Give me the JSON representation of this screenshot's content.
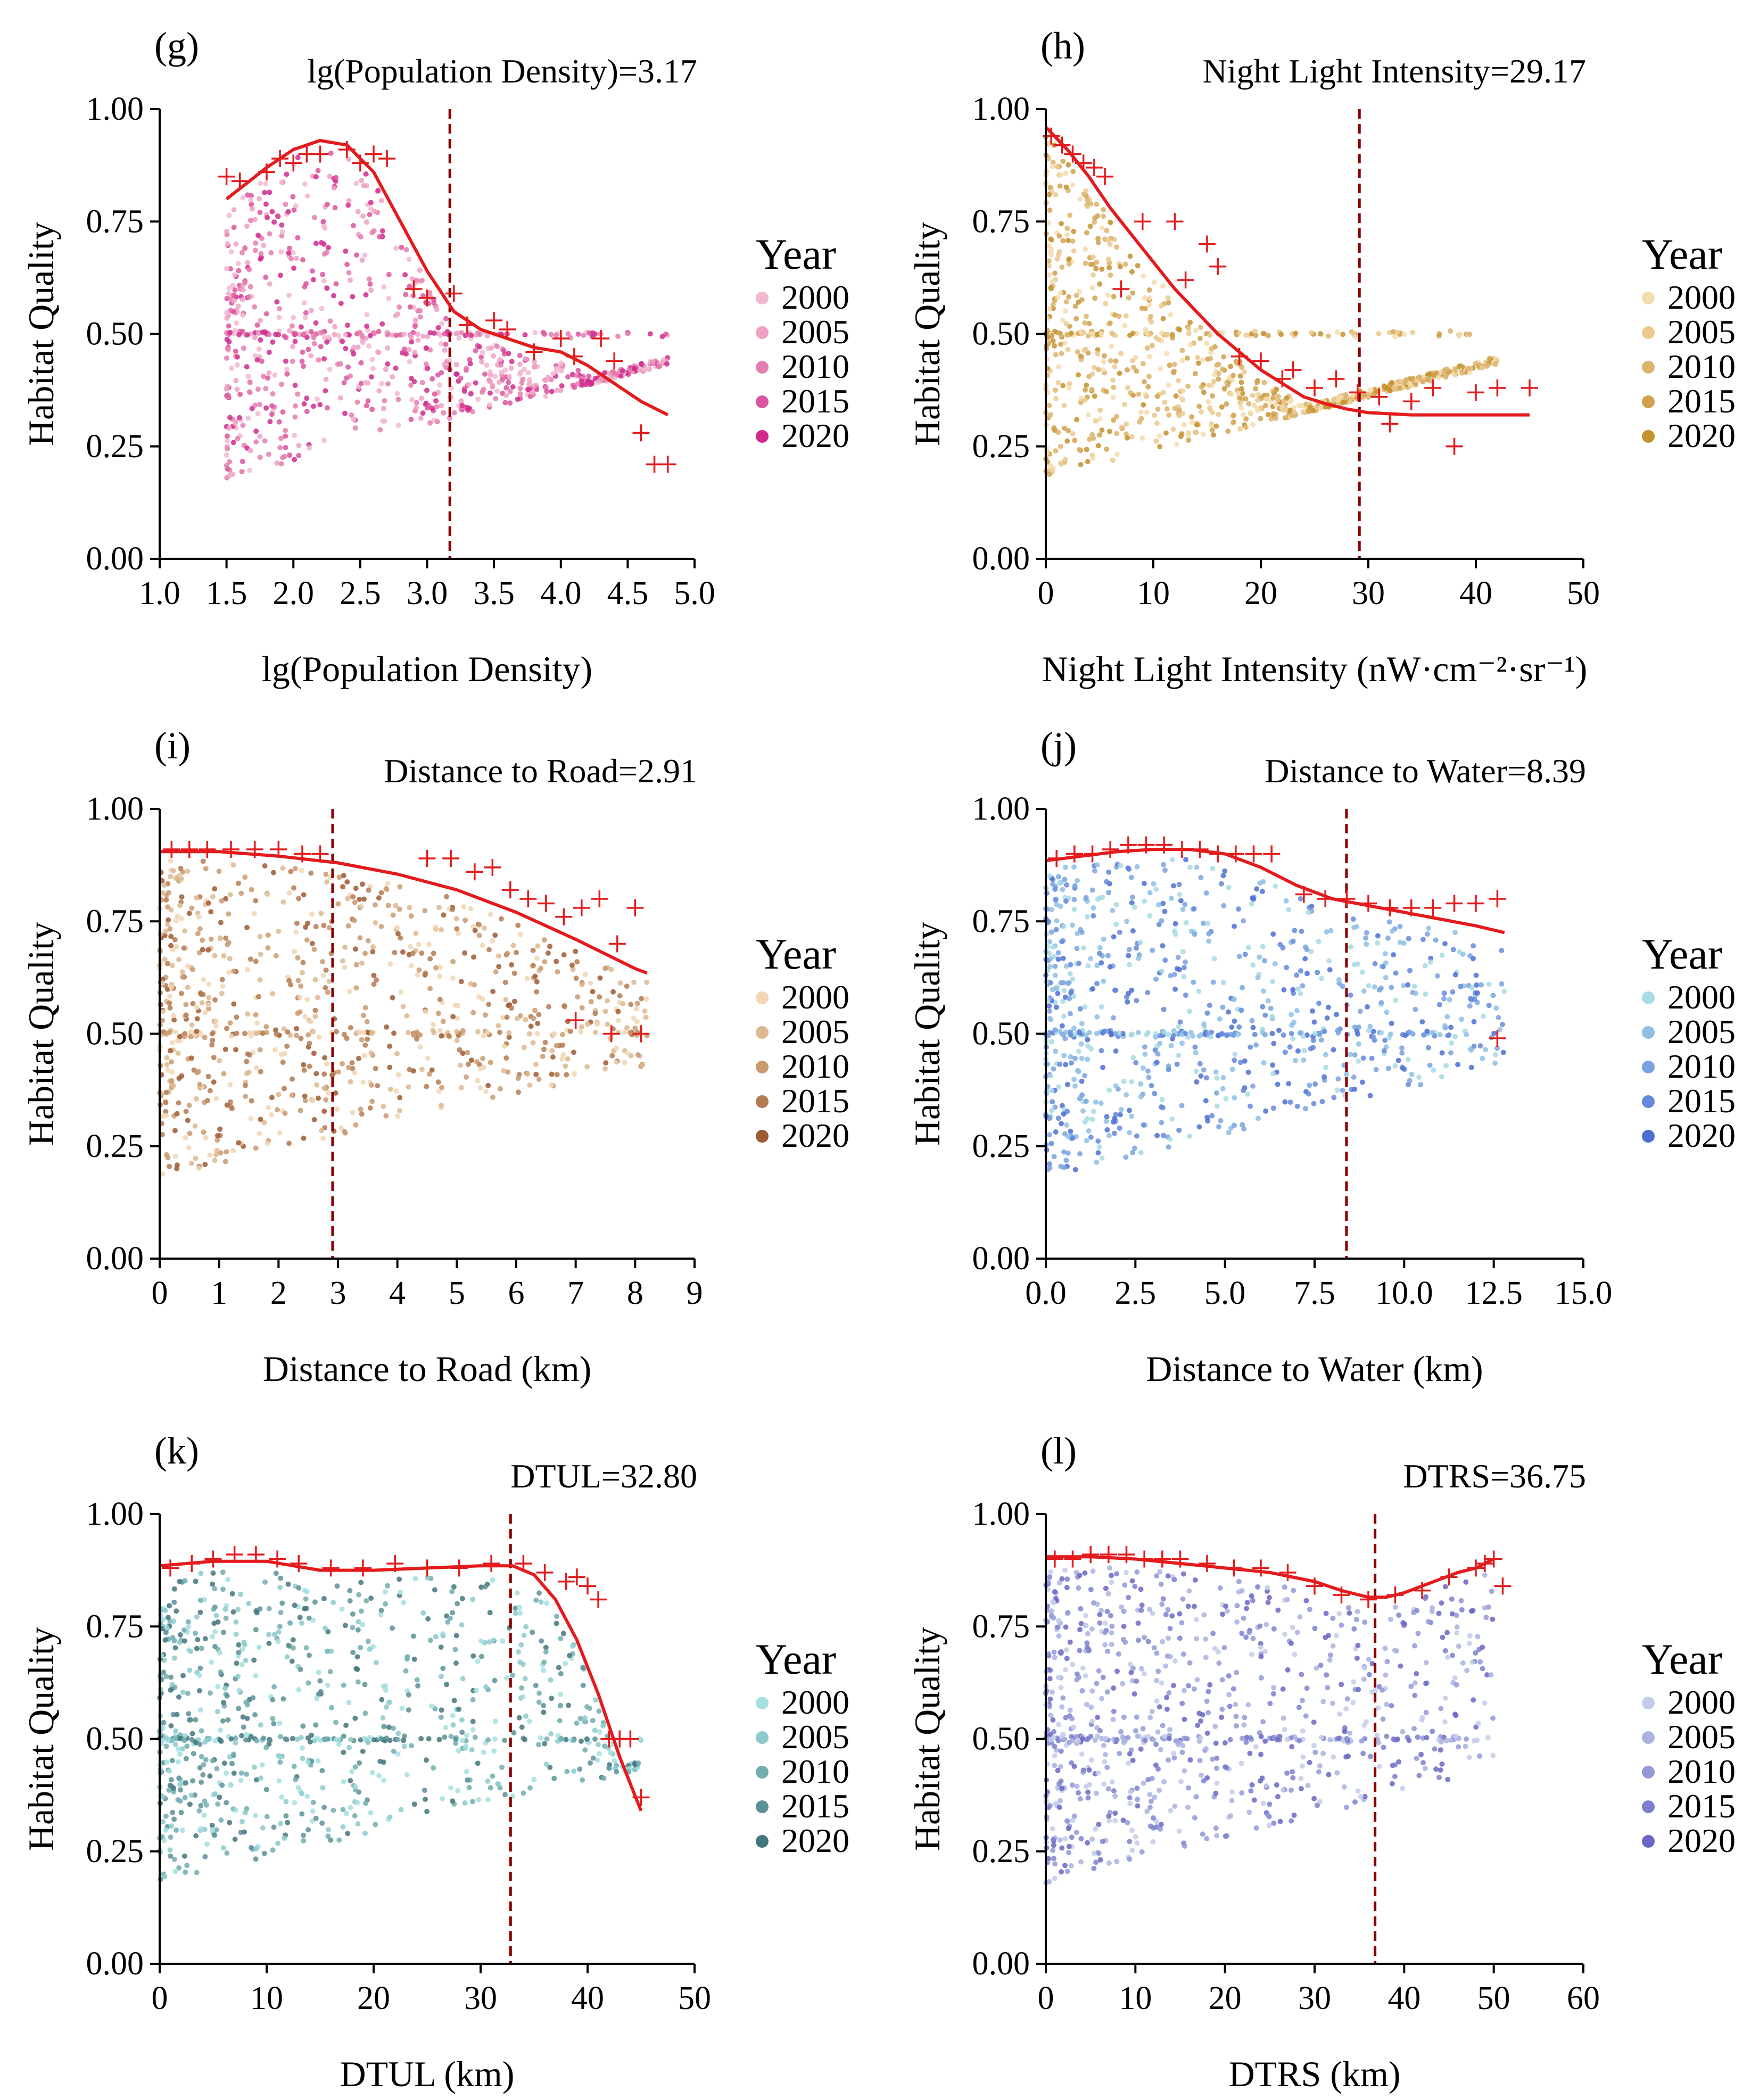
{
  "figure": {
    "axis_color": "#000000",
    "fit_color": "#e41a1c",
    "threshold_color": "#8b0000"
  },
  "chart_data": [
    {
      "type": "scatter",
      "panel_label": "(g)",
      "title": "",
      "threshold_label": "lg(Population Density)=3.17",
      "threshold_value": 3.17,
      "xlabel": "lg(Population Density)",
      "ylabel": "Habitat Quality",
      "xlim": [
        1.0,
        5.0
      ],
      "ylim": [
        0.0,
        1.0
      ],
      "xticks": [
        1.0,
        1.5,
        2.0,
        2.5,
        3.0,
        3.5,
        4.0,
        4.5,
        5.0
      ],
      "xtick_labels": [
        "1.0",
        "1.5",
        "2.0",
        "2.5",
        "3.0",
        "3.5",
        "4.0",
        "4.5",
        "5.0"
      ],
      "yticks": [
        0.0,
        0.25,
        0.5,
        0.75,
        1.0
      ],
      "ytick_labels": [
        "0.00",
        "0.25",
        "0.50",
        "0.75",
        "1.00"
      ],
      "legend_title": "Year",
      "legend_position": "right",
      "years": [
        "2000",
        "2005",
        "2010",
        "2015",
        "2020"
      ],
      "colors": [
        "#f2b8cf",
        "#eda1c3",
        "#e47eb0",
        "#da559e",
        "#cf2c8e"
      ],
      "scatter_x_range": [
        1.5,
        4.8
      ],
      "fit_line": {
        "x": [
          1.5,
          1.8,
          2.0,
          2.2,
          2.4,
          2.6,
          2.8,
          3.0,
          3.2,
          3.4,
          3.6,
          3.8,
          4.0,
          4.2,
          4.4,
          4.6,
          4.8
        ],
        "y": [
          0.8,
          0.87,
          0.91,
          0.93,
          0.92,
          0.86,
          0.75,
          0.64,
          0.55,
          0.51,
          0.49,
          0.47,
          0.46,
          0.43,
          0.39,
          0.35,
          0.32
        ]
      },
      "markers": {
        "x": [
          1.5,
          1.6,
          1.8,
          1.9,
          2.0,
          2.1,
          2.2,
          2.4,
          2.5,
          2.6,
          2.7,
          2.9,
          3.0,
          3.2,
          3.3,
          3.5,
          3.6,
          3.8,
          4.0,
          4.1,
          4.3,
          4.4,
          4.6,
          4.7,
          4.8
        ],
        "y": [
          0.85,
          0.84,
          0.86,
          0.89,
          0.88,
          0.9,
          0.9,
          0.91,
          0.88,
          0.9,
          0.89,
          0.6,
          0.58,
          0.59,
          0.52,
          0.53,
          0.51,
          0.46,
          0.49,
          0.45,
          0.49,
          0.44,
          0.28,
          0.21,
          0.21
        ]
      }
    },
    {
      "type": "scatter",
      "panel_label": "(h)",
      "title": "",
      "threshold_label": "Night Light Intensity=29.17",
      "threshold_value": 29.17,
      "xlabel": "Night Light Intensity (nW·cm⁻²·sr⁻¹)",
      "ylabel": "Habitat Quality",
      "xlim": [
        0,
        50
      ],
      "ylim": [
        0.0,
        1.0
      ],
      "xticks": [
        0,
        10,
        20,
        30,
        40,
        50
      ],
      "xtick_labels": [
        "0",
        "10",
        "20",
        "30",
        "40",
        "50"
      ],
      "yticks": [
        0.0,
        0.25,
        0.5,
        0.75,
        1.0
      ],
      "ytick_labels": [
        "0.00",
        "0.25",
        "0.50",
        "0.75",
        "1.00"
      ],
      "legend_title": "Year",
      "legend_position": "right",
      "years": [
        "2000",
        "2005",
        "2010",
        "2015",
        "2020"
      ],
      "colors": [
        "#f3dcae",
        "#ebc98f",
        "#dcb46d",
        "#d0a24f",
        "#c4922f"
      ],
      "scatter_x_range": [
        0,
        42
      ],
      "fit_line": {
        "x": [
          0,
          2,
          4,
          6,
          8,
          10,
          12,
          14,
          16,
          18,
          20,
          22,
          24,
          26,
          28,
          30,
          34,
          38,
          42,
          45
        ],
        "y": [
          0.96,
          0.91,
          0.85,
          0.78,
          0.72,
          0.66,
          0.6,
          0.55,
          0.5,
          0.46,
          0.42,
          0.39,
          0.36,
          0.345,
          0.333,
          0.325,
          0.32,
          0.32,
          0.32,
          0.32
        ]
      },
      "markers": {
        "x": [
          0.5,
          1.5,
          2.5,
          3.5,
          4.5,
          5.5,
          7,
          9,
          12,
          13,
          15,
          16,
          18,
          20,
          22,
          23,
          25,
          27,
          29,
          31,
          32,
          34,
          36,
          38,
          40,
          42,
          45
        ],
        "y": [
          0.94,
          0.92,
          0.9,
          0.88,
          0.87,
          0.85,
          0.6,
          0.75,
          0.75,
          0.62,
          0.7,
          0.65,
          0.45,
          0.44,
          0.4,
          0.42,
          0.38,
          0.4,
          0.37,
          0.36,
          0.3,
          0.35,
          0.38,
          0.25,
          0.37,
          0.38,
          0.38
        ]
      }
    },
    {
      "type": "scatter",
      "panel_label": "(i)",
      "title": "",
      "threshold_label": "Distance to Road=2.91",
      "threshold_value": 2.91,
      "xlabel": "Distance to Road (km)",
      "ylabel": "Habitat Quality",
      "xlim": [
        0,
        9
      ],
      "ylim": [
        0.0,
        1.0
      ],
      "xticks": [
        0,
        1,
        2,
        3,
        4,
        5,
        6,
        7,
        8,
        9
      ],
      "xtick_labels": [
        "0",
        "1",
        "2",
        "3",
        "4",
        "5",
        "6",
        "7",
        "8",
        "9"
      ],
      "yticks": [
        0.0,
        0.25,
        0.5,
        0.75,
        1.0
      ],
      "ytick_labels": [
        "0.00",
        "0.25",
        "0.50",
        "0.75",
        "1.00"
      ],
      "legend_title": "Year",
      "legend_position": "right",
      "years": [
        "2000",
        "2005",
        "2010",
        "2015",
        "2020"
      ],
      "colors": [
        "#f0d6b4",
        "#ddb991",
        "#c99a70",
        "#b47a51",
        "#9e5a33"
      ],
      "scatter_x_range": [
        0,
        8.2
      ],
      "fit_line": {
        "x": [
          0,
          1,
          2,
          3,
          4,
          5,
          6,
          7,
          8,
          8.2
        ],
        "y": [
          0.905,
          0.905,
          0.895,
          0.88,
          0.855,
          0.82,
          0.77,
          0.71,
          0.645,
          0.635
        ]
      },
      "markers": {
        "x": [
          0.2,
          0.5,
          0.8,
          1.2,
          1.6,
          2.0,
          2.4,
          2.7,
          4.5,
          4.9,
          5.3,
          5.6,
          5.9,
          6.2,
          6.5,
          6.8,
          7.1,
          7.4,
          7.7,
          8.0,
          7.0,
          7.6,
          8.1
        ],
        "y": [
          0.91,
          0.91,
          0.91,
          0.91,
          0.91,
          0.91,
          0.9,
          0.9,
          0.89,
          0.89,
          0.86,
          0.87,
          0.82,
          0.8,
          0.79,
          0.76,
          0.78,
          0.8,
          0.7,
          0.78,
          0.53,
          0.5,
          0.5
        ]
      }
    },
    {
      "type": "scatter",
      "panel_label": "(j)",
      "title": "",
      "threshold_label": "Distance to Water=8.39",
      "threshold_value": 8.39,
      "xlabel": "Distance to Water (km)",
      "ylabel": "Habitat Quality",
      "xlim": [
        0,
        15
      ],
      "ylim": [
        0.0,
        1.0
      ],
      "xticks": [
        0,
        2.5,
        5,
        7.5,
        10,
        12.5,
        15
      ],
      "xtick_labels": [
        "0.0",
        "2.5",
        "5.0",
        "7.5",
        "10.0",
        "12.5",
        "15.0"
      ],
      "yticks": [
        0.0,
        0.25,
        0.5,
        0.75,
        1.0
      ],
      "ytick_labels": [
        "0.00",
        "0.25",
        "0.50",
        "0.75",
        "1.00"
      ],
      "legend_title": "Year",
      "legend_position": "right",
      "years": [
        "2000",
        "2005",
        "2010",
        "2015",
        "2020"
      ],
      "colors": [
        "#a8dbe3",
        "#8fbfe5",
        "#7aa3e0",
        "#6488da",
        "#4d6ed2"
      ],
      "scatter_x_range": [
        0,
        12.8
      ],
      "fit_line": {
        "x": [
          0,
          1,
          2,
          3,
          4,
          5,
          6,
          7,
          8,
          9,
          10,
          11,
          12,
          12.8
        ],
        "y": [
          0.885,
          0.895,
          0.905,
          0.91,
          0.91,
          0.9,
          0.87,
          0.83,
          0.8,
          0.785,
          0.77,
          0.755,
          0.74,
          0.725
        ]
      },
      "markers": {
        "x": [
          0.3,
          0.8,
          1.3,
          1.8,
          2.3,
          2.8,
          3.3,
          3.8,
          4.3,
          4.8,
          5.3,
          5.8,
          6.3,
          7.2,
          7.8,
          8.4,
          9.0,
          9.6,
          10.2,
          10.8,
          11.4,
          12.0,
          12.6,
          12.6
        ],
        "y": [
          0.89,
          0.9,
          0.9,
          0.91,
          0.92,
          0.92,
          0.92,
          0.91,
          0.91,
          0.9,
          0.9,
          0.9,
          0.9,
          0.81,
          0.8,
          0.8,
          0.79,
          0.78,
          0.78,
          0.78,
          0.79,
          0.79,
          0.8,
          0.49
        ]
      }
    },
    {
      "type": "scatter",
      "panel_label": "(k)",
      "title": "",
      "threshold_label": "DTUL=32.80",
      "threshold_value": 32.8,
      "xlabel": "DTUL (km)",
      "ylabel": "Habitat Quality",
      "xlim": [
        0,
        50
      ],
      "ylim": [
        0.0,
        1.0
      ],
      "xticks": [
        0,
        10,
        20,
        30,
        40,
        50
      ],
      "xtick_labels": [
        "0",
        "10",
        "20",
        "30",
        "40",
        "50"
      ],
      "yticks": [
        0.0,
        0.25,
        0.5,
        0.75,
        1.0
      ],
      "ytick_labels": [
        "0.00",
        "0.25",
        "0.50",
        "0.75",
        "1.00"
      ],
      "legend_title": "Year",
      "legend_position": "right",
      "years": [
        "2000",
        "2005",
        "2010",
        "2015",
        "2020"
      ],
      "colors": [
        "#a5dfe0",
        "#8ccacb",
        "#72adb0",
        "#5a9196",
        "#44767c"
      ],
      "scatter_x_range": [
        0,
        45
      ],
      "fit_line": {
        "x": [
          0,
          5,
          10,
          15,
          20,
          25,
          30,
          33,
          35,
          37,
          39,
          41,
          43,
          45
        ],
        "y": [
          0.885,
          0.895,
          0.895,
          0.875,
          0.875,
          0.88,
          0.885,
          0.885,
          0.865,
          0.81,
          0.72,
          0.6,
          0.46,
          0.34
        ]
      },
      "markers": {
        "x": [
          1,
          3,
          5,
          7,
          9,
          11,
          13,
          16,
          19,
          22,
          25,
          28,
          31,
          34,
          36,
          38,
          39,
          40,
          41,
          42,
          43,
          44,
          45
        ],
        "y": [
          0.88,
          0.89,
          0.9,
          0.91,
          0.91,
          0.9,
          0.89,
          0.88,
          0.88,
          0.89,
          0.88,
          0.88,
          0.89,
          0.89,
          0.87,
          0.85,
          0.86,
          0.84,
          0.81,
          0.5,
          0.5,
          0.5,
          0.37
        ]
      }
    },
    {
      "type": "scatter",
      "panel_label": "(l)",
      "title": "",
      "threshold_label": "DTRS=36.75",
      "threshold_value": 36.75,
      "xlabel": "DTRS (km)",
      "ylabel": "Habitat Quality",
      "xlim": [
        0,
        60
      ],
      "ylim": [
        0.0,
        1.0
      ],
      "xticks": [
        0,
        10,
        20,
        30,
        40,
        50,
        60
      ],
      "xtick_labels": [
        "0",
        "10",
        "20",
        "30",
        "40",
        "50",
        "60"
      ],
      "yticks": [
        0.0,
        0.25,
        0.5,
        0.75,
        1.0
      ],
      "ytick_labels": [
        "0.00",
        "0.25",
        "0.50",
        "0.75",
        "1.00"
      ],
      "legend_title": "Year",
      "legend_position": "right",
      "years": [
        "2000",
        "2005",
        "2010",
        "2015",
        "2020"
      ],
      "colors": [
        "#c3cce8",
        "#aab3e0",
        "#9199d6",
        "#7d80ce",
        "#6a66c4"
      ],
      "scatter_x_range": [
        0,
        50
      ],
      "fit_line": {
        "x": [
          0,
          5,
          10,
          15,
          20,
          25,
          30,
          33,
          36,
          38,
          40,
          42,
          44,
          46,
          48,
          50
        ],
        "y": [
          0.905,
          0.905,
          0.9,
          0.89,
          0.88,
          0.87,
          0.85,
          0.83,
          0.815,
          0.815,
          0.825,
          0.84,
          0.855,
          0.87,
          0.88,
          0.9
        ]
      },
      "markers": {
        "x": [
          1,
          3,
          5,
          7,
          9,
          11,
          13,
          15,
          18,
          21,
          24,
          27,
          30,
          33,
          36,
          39,
          42,
          45,
          48,
          49,
          50,
          51
        ],
        "y": [
          0.9,
          0.9,
          0.91,
          0.91,
          0.91,
          0.9,
          0.9,
          0.9,
          0.89,
          0.88,
          0.88,
          0.87,
          0.84,
          0.82,
          0.81,
          0.82,
          0.83,
          0.86,
          0.88,
          0.89,
          0.9,
          0.84
        ]
      }
    }
  ]
}
